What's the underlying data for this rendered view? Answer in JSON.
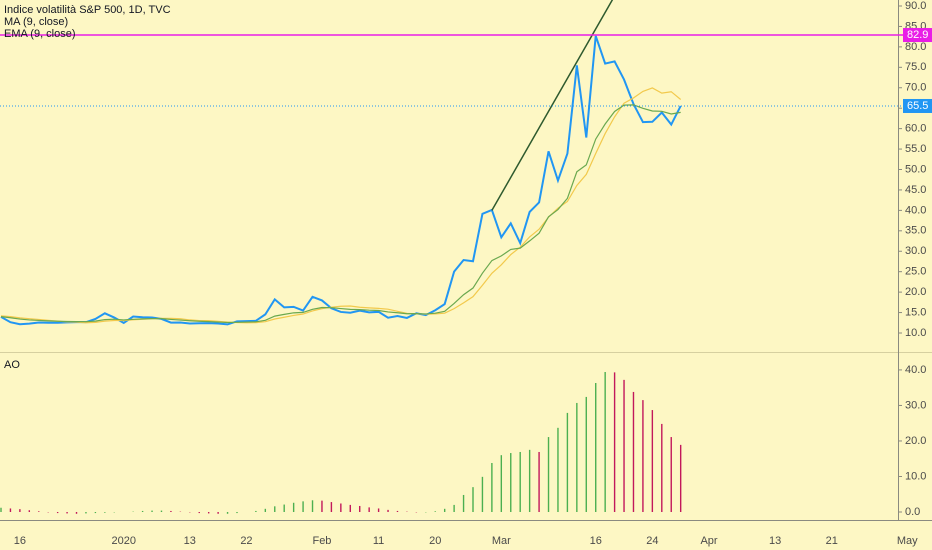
{
  "chart_data": [
    {
      "type": "line",
      "series": [
        {
          "name": "Indice volatilità S&P 500, 1D, TVC",
          "color": "#2196f3",
          "values": [
            13.94,
            12.63,
            12.14,
            12.29,
            12.58,
            12.5,
            12.51,
            12.61,
            12.67,
            12.65,
            13.43,
            14.82,
            13.78,
            12.47,
            14.02,
            13.85,
            13.79,
            13.45,
            12.54,
            12.56,
            12.32,
            12.39,
            12.42,
            12.32,
            12.1,
            12.85,
            12.91,
            12.98,
            14.56,
            18.23,
            16.28,
            16.39,
            15.49,
            18.84,
            17.97,
            16.05,
            15.15,
            14.96,
            15.47,
            15.04,
            15.18,
            13.74,
            14.15,
            13.68,
            14.83,
            14.38,
            15.56,
            17.08,
            25.03,
            27.85,
            27.56,
            39.16,
            40.11,
            33.42,
            36.82,
            31.99,
            39.62,
            41.94,
            54.46,
            47.3,
            53.9,
            75.47,
            57.83,
            82.69,
            75.91,
            76.45,
            72.0,
            66.04,
            61.59,
            61.67,
            63.95,
            61.0,
            65.54,
            null,
            null,
            null,
            null,
            null,
            null,
            null,
            null,
            null,
            null,
            null,
            null,
            null,
            null,
            null,
            null,
            null,
            null,
            null,
            null,
            null,
            null,
            null,
            null
          ]
        },
        {
          "name": "MA (9, close)",
          "color": "#f2c94c",
          "values": [
            14.2,
            14.0,
            13.7,
            13.5,
            13.3,
            13.1,
            12.9,
            12.7,
            12.65,
            12.51,
            12.6,
            12.9,
            13.06,
            13.05,
            13.22,
            13.37,
            13.5,
            13.58,
            13.57,
            13.48,
            13.2,
            13.04,
            13.04,
            12.85,
            12.65,
            12.55,
            12.49,
            12.54,
            12.76,
            13.42,
            13.85,
            14.29,
            14.64,
            15.39,
            15.96,
            16.31,
            16.55,
            16.6,
            16.29,
            16.15,
            16.02,
            15.82,
            15.3,
            14.82,
            14.69,
            14.6,
            14.67,
            14.85,
            15.96,
            17.37,
            18.9,
            21.68,
            24.62,
            26.68,
            29.18,
            31.0,
            33.51,
            35.39,
            38.34,
            40.54,
            42.17,
            46.1,
            48.81,
            53.91,
            58.79,
            62.88,
            66.22,
            67.51,
            69.1,
            69.96,
            68.68,
            69.03,
            67.13,
            null,
            null,
            null,
            null,
            null,
            null,
            null,
            null,
            null,
            null,
            null,
            null,
            null,
            null,
            null,
            null,
            null,
            null,
            null,
            null,
            null,
            null,
            null,
            null
          ]
        },
        {
          "name": "EMA (9, close)",
          "color": "#6aa84f",
          "values": [
            14.0,
            13.73,
            13.41,
            13.19,
            13.07,
            12.96,
            12.87,
            12.82,
            12.79,
            12.76,
            12.9,
            13.28,
            13.38,
            13.19,
            13.35,
            13.45,
            13.52,
            13.51,
            13.32,
            13.17,
            13.0,
            12.88,
            12.78,
            12.68,
            12.56,
            12.62,
            12.68,
            12.74,
            13.1,
            14.13,
            14.56,
            14.93,
            15.04,
            15.8,
            16.23,
            16.19,
            15.98,
            15.77,
            15.71,
            15.58,
            15.5,
            15.15,
            14.95,
            14.7,
            14.73,
            14.66,
            14.84,
            15.29,
            17.24,
            19.36,
            21.0,
            24.63,
            27.72,
            28.86,
            30.45,
            30.76,
            32.53,
            34.41,
            38.42,
            40.2,
            42.94,
            49.44,
            51.12,
            57.44,
            61.13,
            64.19,
            65.75,
            65.81,
            64.97,
            64.31,
            64.24,
            63.59,
            63.98,
            null,
            null,
            null,
            null,
            null,
            null,
            null,
            null,
            null,
            null,
            null,
            null,
            null,
            null,
            null,
            null,
            null,
            null,
            null,
            null,
            null,
            null,
            null,
            null
          ]
        }
      ],
      "price_lines": [
        {
          "value": 82.9,
          "color": "#e91ee6"
        },
        {
          "value": 65.54,
          "label": "65.5",
          "color": "#2196f3"
        }
      ],
      "trend_line": {
        "color": "#2e5a2e",
        "points": [
          [
            52,
            40.0
          ],
          [
            66,
            96.5
          ]
        ]
      },
      "ylim": [
        5.35,
        91.47
      ],
      "yticks": [
        {
          "value": 10,
          "label": "10.0"
        },
        {
          "value": 15,
          "label": "15.0"
        },
        {
          "value": 20,
          "label": "20.0"
        },
        {
          "value": 25,
          "label": "25.0"
        },
        {
          "value": 30,
          "label": "30.0"
        },
        {
          "value": 35,
          "label": "35.0"
        },
        {
          "value": 40,
          "label": "40.0"
        },
        {
          "value": 45,
          "label": "45.0"
        },
        {
          "value": 50,
          "label": "50.0"
        },
        {
          "value": 55,
          "label": "55.0"
        },
        {
          "value": 60,
          "label": "60.0"
        },
        {
          "value": 65,
          "label": "65.0"
        },
        {
          "value": 70,
          "label": "70.0"
        },
        {
          "value": 75,
          "label": "75.0"
        },
        {
          "value": 80,
          "label": "80.0"
        },
        {
          "value": 85,
          "label": "85.0"
        },
        {
          "value": 90,
          "label": "90.0"
        }
      ]
    },
    {
      "type": "bar",
      "title": "AO",
      "up_color": "#4caf50",
      "down_color": "#c2185b",
      "categories": [
        null,
        null,
        "16",
        null,
        null,
        null,
        null,
        null,
        null,
        null,
        null,
        null,
        null,
        "2020",
        null,
        null,
        null,
        null,
        null,
        null,
        "13",
        null,
        null,
        null,
        null,
        null,
        "22",
        null,
        null,
        null,
        null,
        null,
        null,
        null,
        "Feb",
        null,
        null,
        null,
        null,
        null,
        "11",
        null,
        null,
        null,
        null,
        null,
        "20",
        null,
        null,
        null,
        null,
        null,
        null,
        "Mar",
        null,
        null,
        null,
        null,
        null,
        null,
        null,
        null,
        null,
        "16",
        null,
        null,
        null,
        null,
        null,
        "24",
        null,
        null,
        null,
        null,
        null,
        "Apr",
        null,
        null,
        null,
        null,
        null,
        null,
        "13",
        null,
        null,
        null,
        null,
        null,
        "21",
        null,
        null,
        null,
        null,
        null,
        null,
        null,
        "May"
      ],
      "values": [
        1.2,
        1.0,
        0.8,
        0.5,
        0.2,
        -0.1,
        -0.3,
        -0.4,
        -0.5,
        -0.4,
        -0.3,
        -0.2,
        -0.1,
        0.0,
        0.1,
        0.3,
        0.4,
        0.4,
        0.3,
        0.1,
        -0.1,
        -0.3,
        -0.4,
        -0.5,
        -0.5,
        -0.3,
        0.0,
        0.3,
        0.9,
        1.6,
        2.1,
        2.6,
        3.0,
        3.3,
        3.2,
        2.8,
        2.4,
        2.0,
        1.7,
        1.3,
        1.0,
        0.6,
        0.3,
        0.1,
        -0.1,
        -0.1,
        0.2,
        0.9,
        2.0,
        4.8,
        7.0,
        9.9,
        13.8,
        16.0,
        16.6,
        16.9,
        17.5,
        16.9,
        21.1,
        23.7,
        27.9,
        30.7,
        32.4,
        36.3,
        39.4,
        39.3,
        37.2,
        33.8,
        31.5,
        28.7,
        24.8,
        21.1,
        18.9,
        null,
        null,
        null,
        null,
        null,
        null,
        null,
        null,
        null,
        null,
        null,
        null,
        null,
        null,
        null,
        null,
        null,
        null,
        null,
        null,
        null,
        null,
        null,
        null
      ],
      "ylim": [
        -2.25,
        44.2
      ],
      "yticks": [
        {
          "value": 0,
          "label": "0.0"
        },
        {
          "value": 10,
          "label": "10.0"
        },
        {
          "value": 20,
          "label": "20.0"
        },
        {
          "value": 30,
          "label": "30.0"
        },
        {
          "value": 40,
          "label": "40.0"
        }
      ]
    }
  ]
}
